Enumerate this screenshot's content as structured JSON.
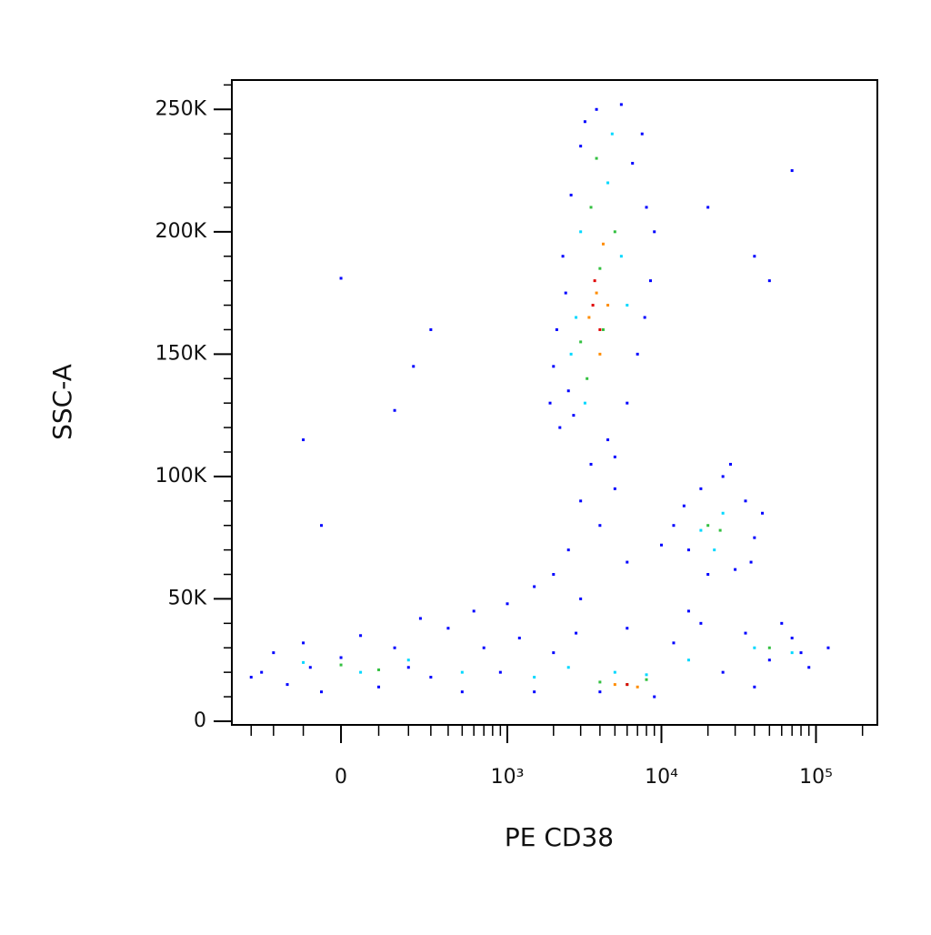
{
  "chart_data": {
    "type": "scatter",
    "xlabel": "PE CD38",
    "ylabel": "SSC-A",
    "xscale": "logicle",
    "xlim": [
      -413,
      249500
    ],
    "ylim": [
      -1500,
      262000
    ],
    "xticks": [
      {
        "value": 0,
        "label": "0"
      },
      {
        "value": 1000,
        "label": "10³"
      },
      {
        "value": 10000,
        "label": "10⁴"
      },
      {
        "value": 100000,
        "label": "10⁵"
      }
    ],
    "xminorticks": [
      -300,
      -200,
      -100,
      100,
      200,
      300,
      400,
      500,
      600,
      700,
      800,
      900,
      2000,
      3000,
      4000,
      5000,
      6000,
      7000,
      8000,
      9000,
      20000,
      30000,
      40000,
      50000,
      60000,
      70000,
      80000,
      90000,
      200000
    ],
    "yticks": [
      0,
      {
        "value": 50000,
        "label": "50K"
      },
      {
        "value": 100000,
        "label": "100K"
      },
      {
        "value": 150000,
        "label": "150K"
      },
      {
        "value": 200000,
        "label": "200K"
      },
      {
        "value": 250000,
        "label": "250K"
      }
    ],
    "yminorticks": [
      10000,
      20000,
      30000,
      40000,
      60000,
      70000,
      80000,
      90000,
      110000,
      120000,
      130000,
      140000,
      160000,
      170000,
      180000,
      190000,
      210000,
      220000,
      230000,
      240000,
      260000
    ],
    "series": [
      {
        "color": "#0000ff",
        "x": [
          2200,
          2500,
          2100,
          2300,
          2600,
          3000,
          3800,
          5500,
          7500,
          8000,
          8500,
          7000,
          6000,
          4500,
          3500,
          2000,
          2400,
          9000,
          2700,
          5000,
          3200,
          6500,
          1900,
          7800,
          3000,
          4000,
          2500,
          5000,
          2000,
          6000,
          1500,
          15000,
          18000,
          25000,
          35000,
          40000,
          30000,
          20000,
          12000,
          28000,
          14000,
          38000,
          10000,
          45000,
          -250,
          -200,
          -150,
          -100,
          -50,
          0,
          50,
          100,
          150,
          200,
          300,
          400,
          500,
          700,
          900,
          1200,
          1500,
          2000,
          2800,
          4000,
          6000,
          9000,
          12000,
          18000,
          25000,
          35000,
          50000,
          70000,
          90000,
          120000,
          -300,
          250,
          600,
          1000,
          3000,
          15000,
          60000,
          -80,
          80000,
          40000,
          0,
          220,
          300,
          150,
          -100,
          50000,
          70000,
          40000,
          -50,
          20000
        ],
        "values": [
          120000,
          135000,
          160000,
          190000,
          215000,
          235000,
          250000,
          252000,
          240000,
          210000,
          180000,
          150000,
          130000,
          115000,
          105000,
          145000,
          175000,
          200000,
          125000,
          108000,
          245000,
          228000,
          130000,
          165000,
          90000,
          80000,
          70000,
          95000,
          60000,
          65000,
          55000,
          70000,
          95000,
          100000,
          90000,
          75000,
          62000,
          60000,
          80000,
          105000,
          88000,
          65000,
          72000,
          85000,
          20000,
          28000,
          15000,
          32000,
          12000,
          26000,
          35000,
          14000,
          30000,
          22000,
          18000,
          38000,
          12000,
          30000,
          20000,
          34000,
          12000,
          28000,
          36000,
          12000,
          38000,
          10000,
          32000,
          40000,
          20000,
          36000,
          25000,
          34000,
          22000,
          30000,
          18000,
          42000,
          45000,
          48000,
          50000,
          45000,
          40000,
          22000,
          28000,
          14000,
          181000,
          145000,
          160000,
          127000,
          115000,
          180000,
          225000,
          190000,
          80000,
          210000
        ]
      },
      {
        "color": "#00d8ff",
        "x": [
          2600,
          3000,
          4500,
          5500,
          3200,
          6000,
          2800,
          4800,
          18000,
          25000,
          22000,
          -100,
          50,
          200,
          500,
          1500,
          2500,
          5000,
          8000,
          15000,
          40000,
          70000
        ],
        "values": [
          150000,
          200000,
          220000,
          190000,
          130000,
          170000,
          165000,
          240000,
          78000,
          85000,
          70000,
          24000,
          20000,
          25000,
          20000,
          18000,
          22000,
          20000,
          19000,
          25000,
          30000,
          28000
        ]
      },
      {
        "color": "#33c040",
        "x": [
          3500,
          4000,
          3000,
          4200,
          5000,
          3800,
          3300,
          20000,
          24000,
          0,
          100,
          4000,
          6000,
          8000,
          50000
        ],
        "values": [
          210000,
          185000,
          155000,
          160000,
          200000,
          230000,
          140000,
          80000,
          78000,
          23000,
          21000,
          16000,
          15000,
          17000,
          30000
        ]
      },
      {
        "color": "#ff8c00",
        "x": [
          3800,
          4200,
          3400,
          4000,
          5000,
          7000,
          4500
        ],
        "values": [
          175000,
          195000,
          165000,
          150000,
          15000,
          14000,
          170000
        ]
      },
      {
        "color": "#e00000",
        "x": [
          3600,
          4000,
          6000,
          3700
        ],
        "values": [
          170000,
          160000,
          15000,
          180000
        ]
      }
    ]
  }
}
